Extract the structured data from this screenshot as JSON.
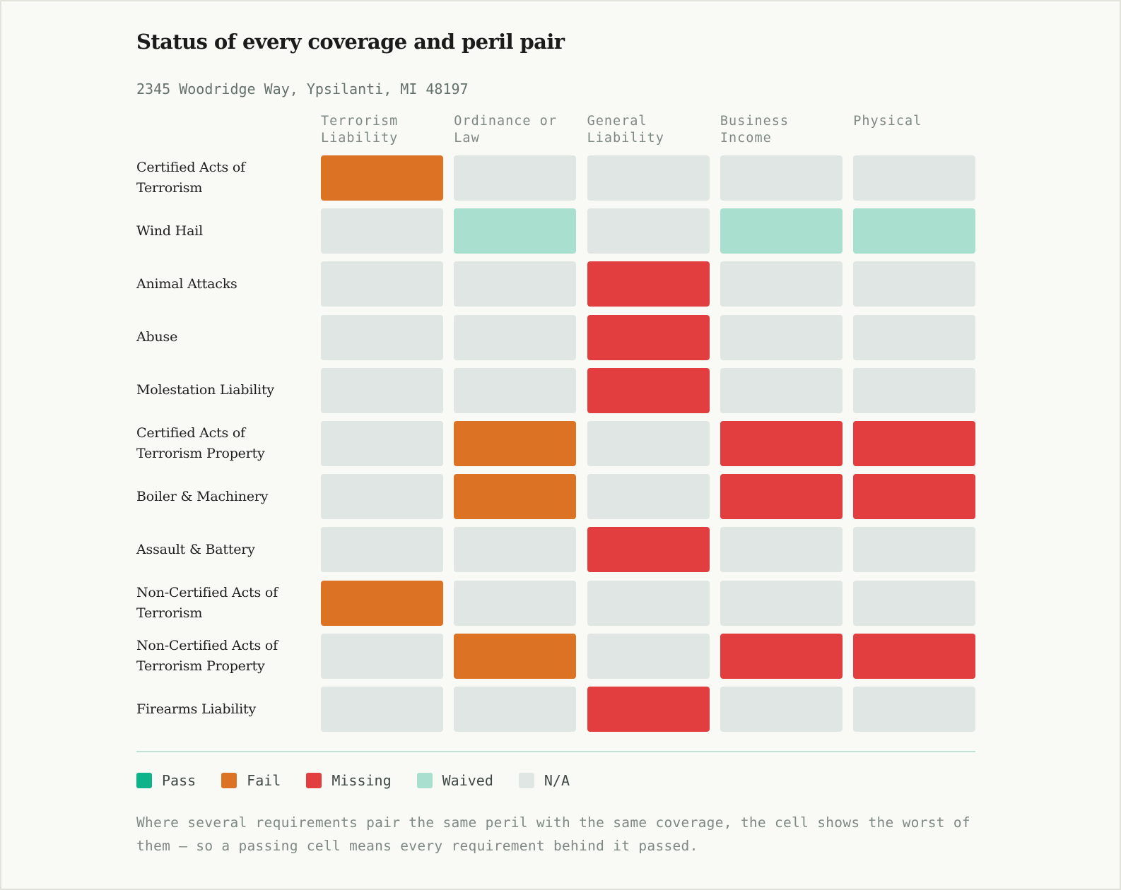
{
  "chart_data": {
    "type": "heatmap",
    "title": "Status of every coverage and peril pair",
    "subtitle": "2345 Woodridge Way, Ypsilanti, MI 48197",
    "columns": [
      "Terrorism\nLiability",
      "Ordinance or\nLaw",
      "General\nLiability",
      "Business\nIncome",
      "Physical"
    ],
    "rows": [
      {
        "label": "Certified Acts of Terrorism",
        "cells": [
          "Fail",
          "N/A",
          "N/A",
          "N/A",
          "N/A"
        ]
      },
      {
        "label": "Wind Hail",
        "cells": [
          "N/A",
          "Waived",
          "N/A",
          "Waived",
          "Waived"
        ]
      },
      {
        "label": "Animal Attacks",
        "cells": [
          "N/A",
          "N/A",
          "Missing",
          "N/A",
          "N/A"
        ]
      },
      {
        "label": "Abuse",
        "cells": [
          "N/A",
          "N/A",
          "Missing",
          "N/A",
          "N/A"
        ]
      },
      {
        "label": "Molestation Liability",
        "cells": [
          "N/A",
          "N/A",
          "Missing",
          "N/A",
          "N/A"
        ]
      },
      {
        "label": "Certified Acts of Terrorism Property",
        "cells": [
          "N/A",
          "Fail",
          "N/A",
          "Missing",
          "Missing"
        ]
      },
      {
        "label": "Boiler & Machinery",
        "cells": [
          "N/A",
          "Fail",
          "N/A",
          "Missing",
          "Missing"
        ]
      },
      {
        "label": "Assault & Battery",
        "cells": [
          "N/A",
          "N/A",
          "Missing",
          "N/A",
          "N/A"
        ]
      },
      {
        "label": "Non-Certified Acts of Terrorism",
        "cells": [
          "Fail",
          "N/A",
          "N/A",
          "N/A",
          "N/A"
        ]
      },
      {
        "label": "Non-Certified Acts of Terrorism Property",
        "cells": [
          "N/A",
          "Fail",
          "N/A",
          "Missing",
          "Missing"
        ]
      },
      {
        "label": "Firearms Liability",
        "cells": [
          "N/A",
          "N/A",
          "Missing",
          "N/A",
          "N/A"
        ]
      }
    ],
    "legend": [
      {
        "label": "Pass",
        "color": "#0fb38a"
      },
      {
        "label": "Fail",
        "color": "#db7224"
      },
      {
        "label": "Missing",
        "color": "#e23e40"
      },
      {
        "label": "Waived",
        "color": "#a8dfcf"
      },
      {
        "label": "N/A",
        "color": "#e0e6e3"
      }
    ],
    "legend_position": "bottom",
    "note": "Where several requirements pair the same peril with the same coverage, the cell shows the worst of them — so a passing cell means every requirement behind it passed."
  }
}
